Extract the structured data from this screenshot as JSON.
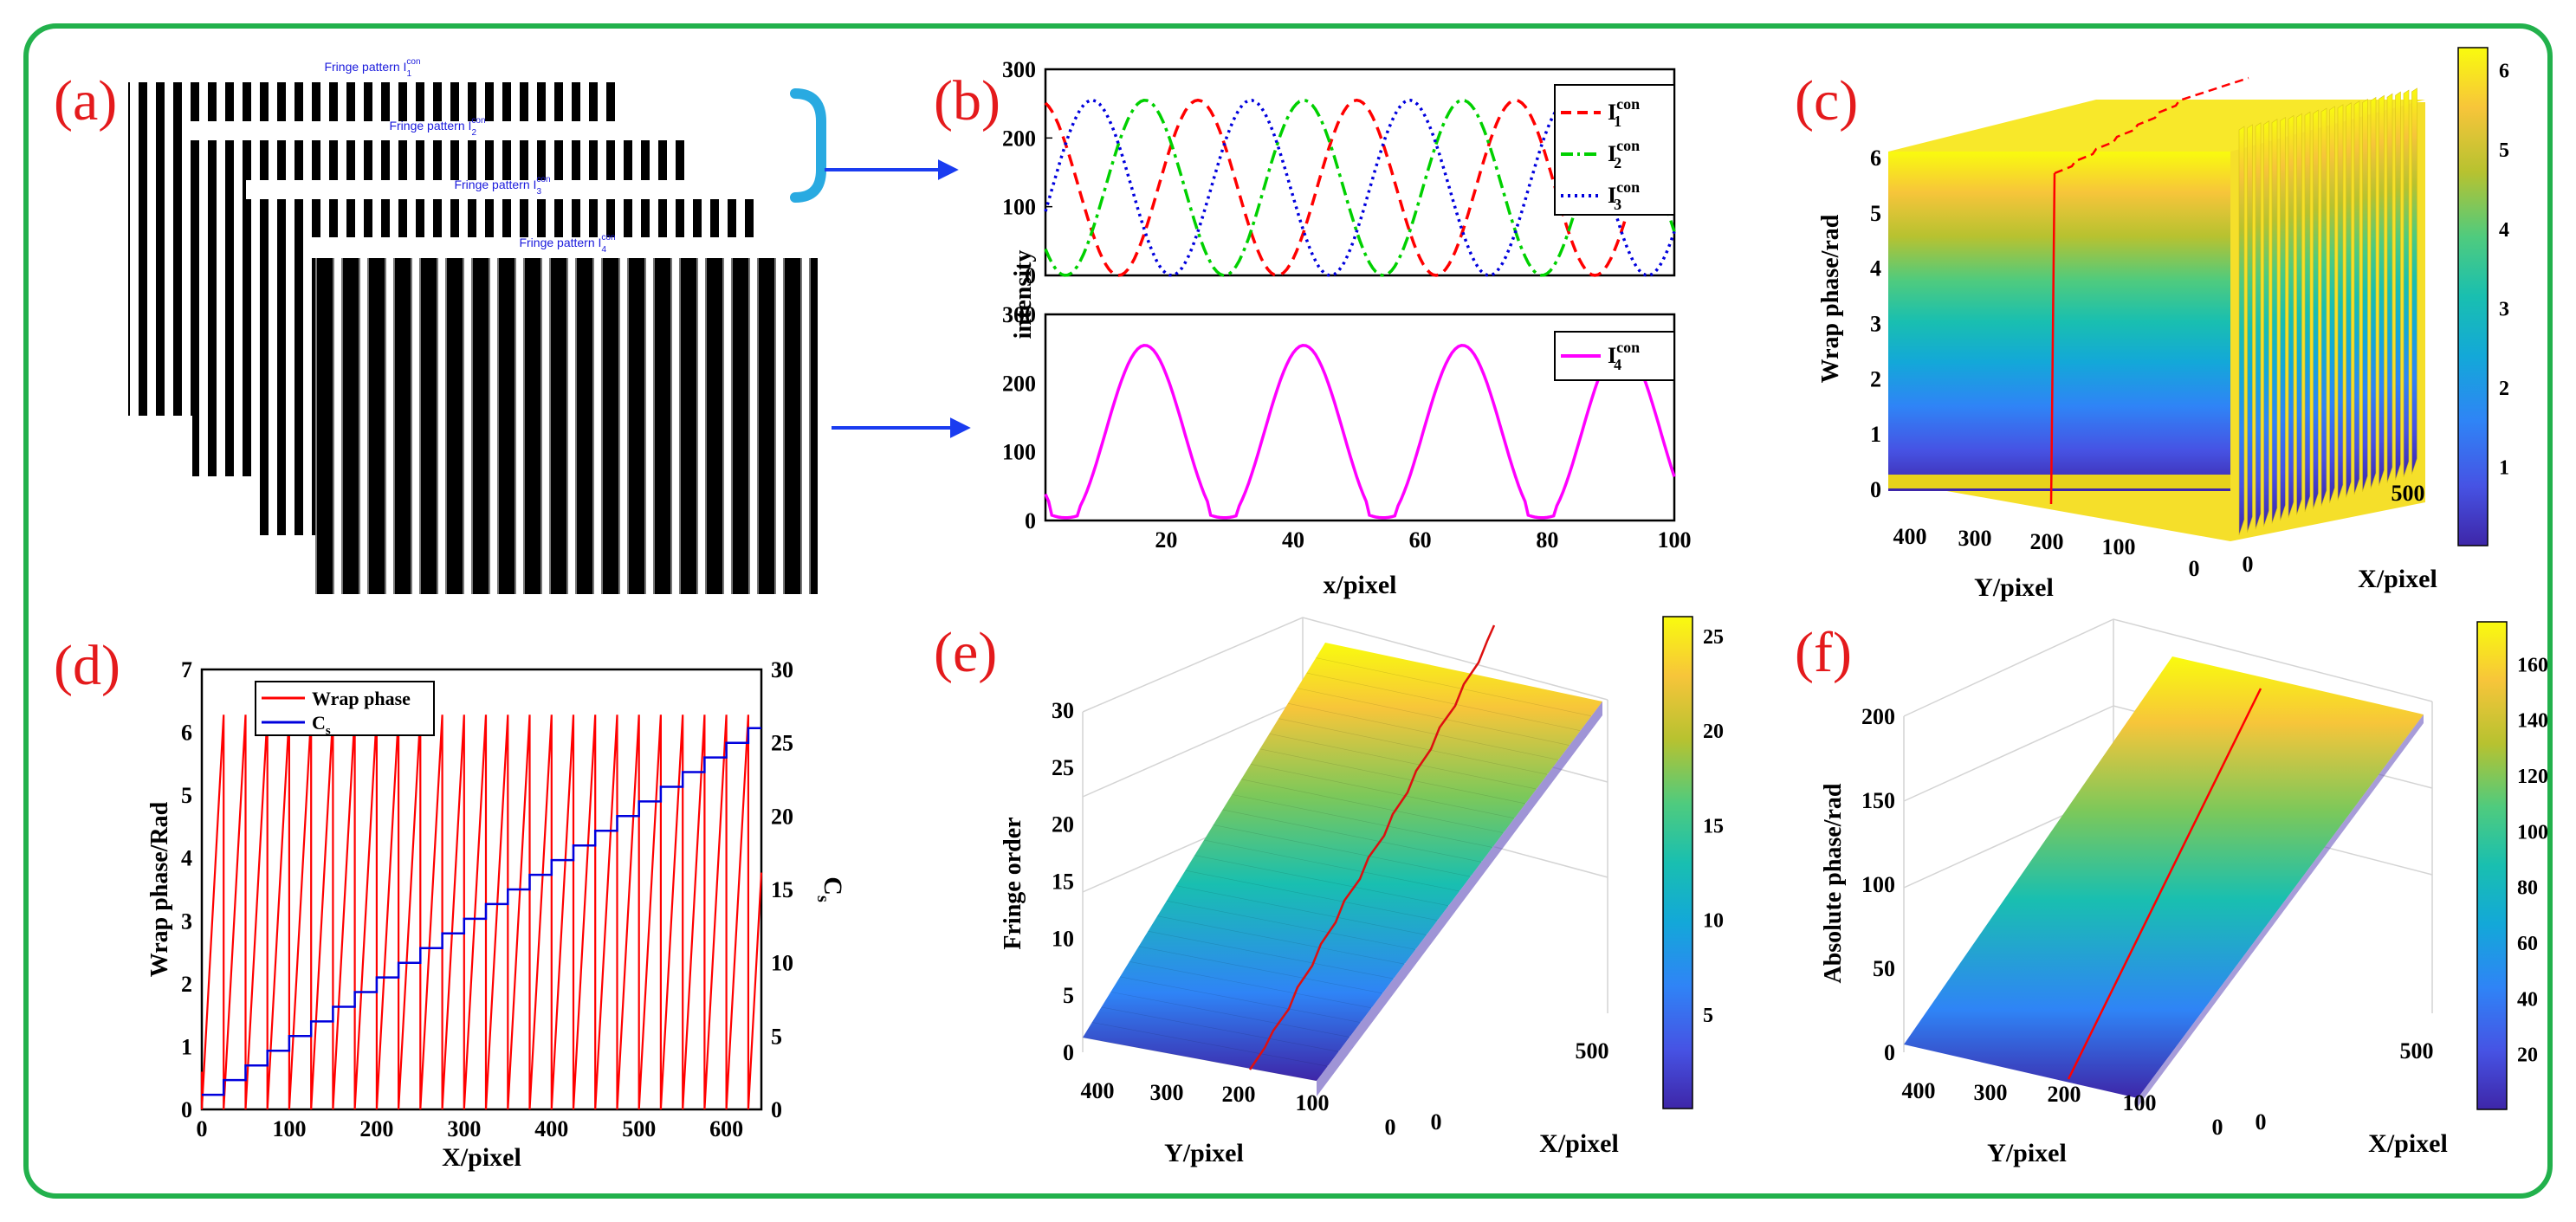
{
  "colors": {
    "frame": "#22b14c",
    "panel_label": "#e41a1c",
    "red": "#ff0000",
    "green": "#00d000",
    "blue": "#0000dd",
    "magenta": "#ff00ff",
    "arrow": "#1a3cf0",
    "bracket": "#29aae1",
    "pattern_title": "#1a1adc"
  },
  "panel_labels": {
    "a": "(a)",
    "b": "(b)",
    "c": "(c)",
    "d": "(d)",
    "e": "(e)",
    "f": "(f)"
  },
  "panel_a": {
    "titles": [
      "Fringe pattern I",
      "Fringe pattern I",
      "Fringe pattern I",
      "Fringe pattern I"
    ],
    "sup": "con",
    "subs": [
      "1",
      "2",
      "3",
      "4"
    ]
  },
  "chart_data": [
    {
      "id": "b-top",
      "type": "line",
      "ylabel": "intensity",
      "xlim": [
        1,
        100
      ],
      "ylim": [
        0,
        300
      ],
      "yticks": [
        "0",
        "100",
        "200",
        "300"
      ],
      "series": [
        {
          "name": "I",
          "sup": "con",
          "sub": "1",
          "style": "dashed",
          "color": "#ff0000",
          "amplitude": 255,
          "period": 25,
          "phase_deg": 90
        },
        {
          "name": "I",
          "sup": "con",
          "sub": "2",
          "style": "dashdot",
          "color": "#00d000",
          "amplitude": 255,
          "period": 25,
          "phase_deg": 210
        },
        {
          "name": "I",
          "sup": "con",
          "sub": "3",
          "style": "dotted",
          "color": "#0000dd",
          "amplitude": 255,
          "period": 25,
          "phase_deg": 330
        }
      ]
    },
    {
      "id": "b-bottom",
      "type": "line",
      "xlabel": "x/pixel",
      "xlim": [
        1,
        100
      ],
      "ylim": [
        0,
        300
      ],
      "xticks": [
        "20",
        "40",
        "60",
        "80",
        "100"
      ],
      "yticks": [
        "0",
        "100",
        "200",
        "300"
      ],
      "series": [
        {
          "name": "I",
          "sup": "con",
          "sub": "4",
          "style": "solid",
          "color": "#ff00ff",
          "amplitude": 255,
          "period": 25,
          "phase_deg": 210,
          "clip_floor": 20
        }
      ]
    },
    {
      "id": "c",
      "type": "surface3d",
      "zlabel": "Wrap phase/rad",
      "xlabel": "X/pixel",
      "ylabel": "Y/pixel",
      "zticks": [
        "0",
        "1",
        "2",
        "3",
        "4",
        "5",
        "6"
      ],
      "yticks": [
        "400",
        "300",
        "200",
        "100",
        "0"
      ],
      "xticks": [
        "0",
        "500"
      ],
      "colorbar": {
        "min": 0,
        "max": 6.28,
        "ticks": [
          "1",
          "2",
          "3",
          "4",
          "5",
          "6"
        ]
      }
    },
    {
      "id": "d",
      "type": "line",
      "xlabel": "X/pixel",
      "ylabel": "Wrap phase/Rad",
      "y2label": "C",
      "y2label_sub": "s",
      "xlim": [
        0,
        640
      ],
      "ylim": [
        0,
        7
      ],
      "y2lim": [
        0,
        30
      ],
      "xticks": [
        "0",
        "100",
        "200",
        "300",
        "400",
        "500",
        "600"
      ],
      "yticks": [
        "0",
        "1",
        "2",
        "3",
        "4",
        "5",
        "6",
        "7"
      ],
      "y2ticks": [
        "0",
        "5",
        "10",
        "15",
        "20",
        "25",
        "30"
      ],
      "series": [
        {
          "name": "Wrap phase",
          "color": "#ff0000",
          "axis": "left",
          "period": 25,
          "max": 6.28
        },
        {
          "name": "C",
          "sub": "s",
          "color": "#0000dd",
          "axis": "right",
          "step": 25,
          "max": 26
        }
      ]
    },
    {
      "id": "e",
      "type": "surface3d",
      "zlabel": "Fringe order",
      "xlabel": "X/pixel",
      "ylabel": "Y/pixel",
      "zticks": [
        "0",
        "5",
        "10",
        "15",
        "20",
        "25",
        "30"
      ],
      "yticks": [
        "400",
        "300",
        "200",
        "100",
        "0"
      ],
      "xticks": [
        "0",
        "500"
      ],
      "colorbar": {
        "min": 0,
        "max": 26,
        "ticks": [
          "5",
          "10",
          "15",
          "20",
          "25"
        ]
      }
    },
    {
      "id": "f",
      "type": "surface3d",
      "zlabel": "Absolute phase/rad",
      "xlabel": "X/pixel",
      "ylabel": "Y/pixel",
      "zticks": [
        "0",
        "50",
        "100",
        "150",
        "200"
      ],
      "yticks": [
        "400",
        "300",
        "200",
        "100",
        "0"
      ],
      "xticks": [
        "0",
        "500"
      ],
      "colorbar": {
        "min": 0,
        "max": 175,
        "ticks": [
          "20",
          "40",
          "60",
          "80",
          "100",
          "120",
          "140",
          "160"
        ]
      }
    }
  ]
}
